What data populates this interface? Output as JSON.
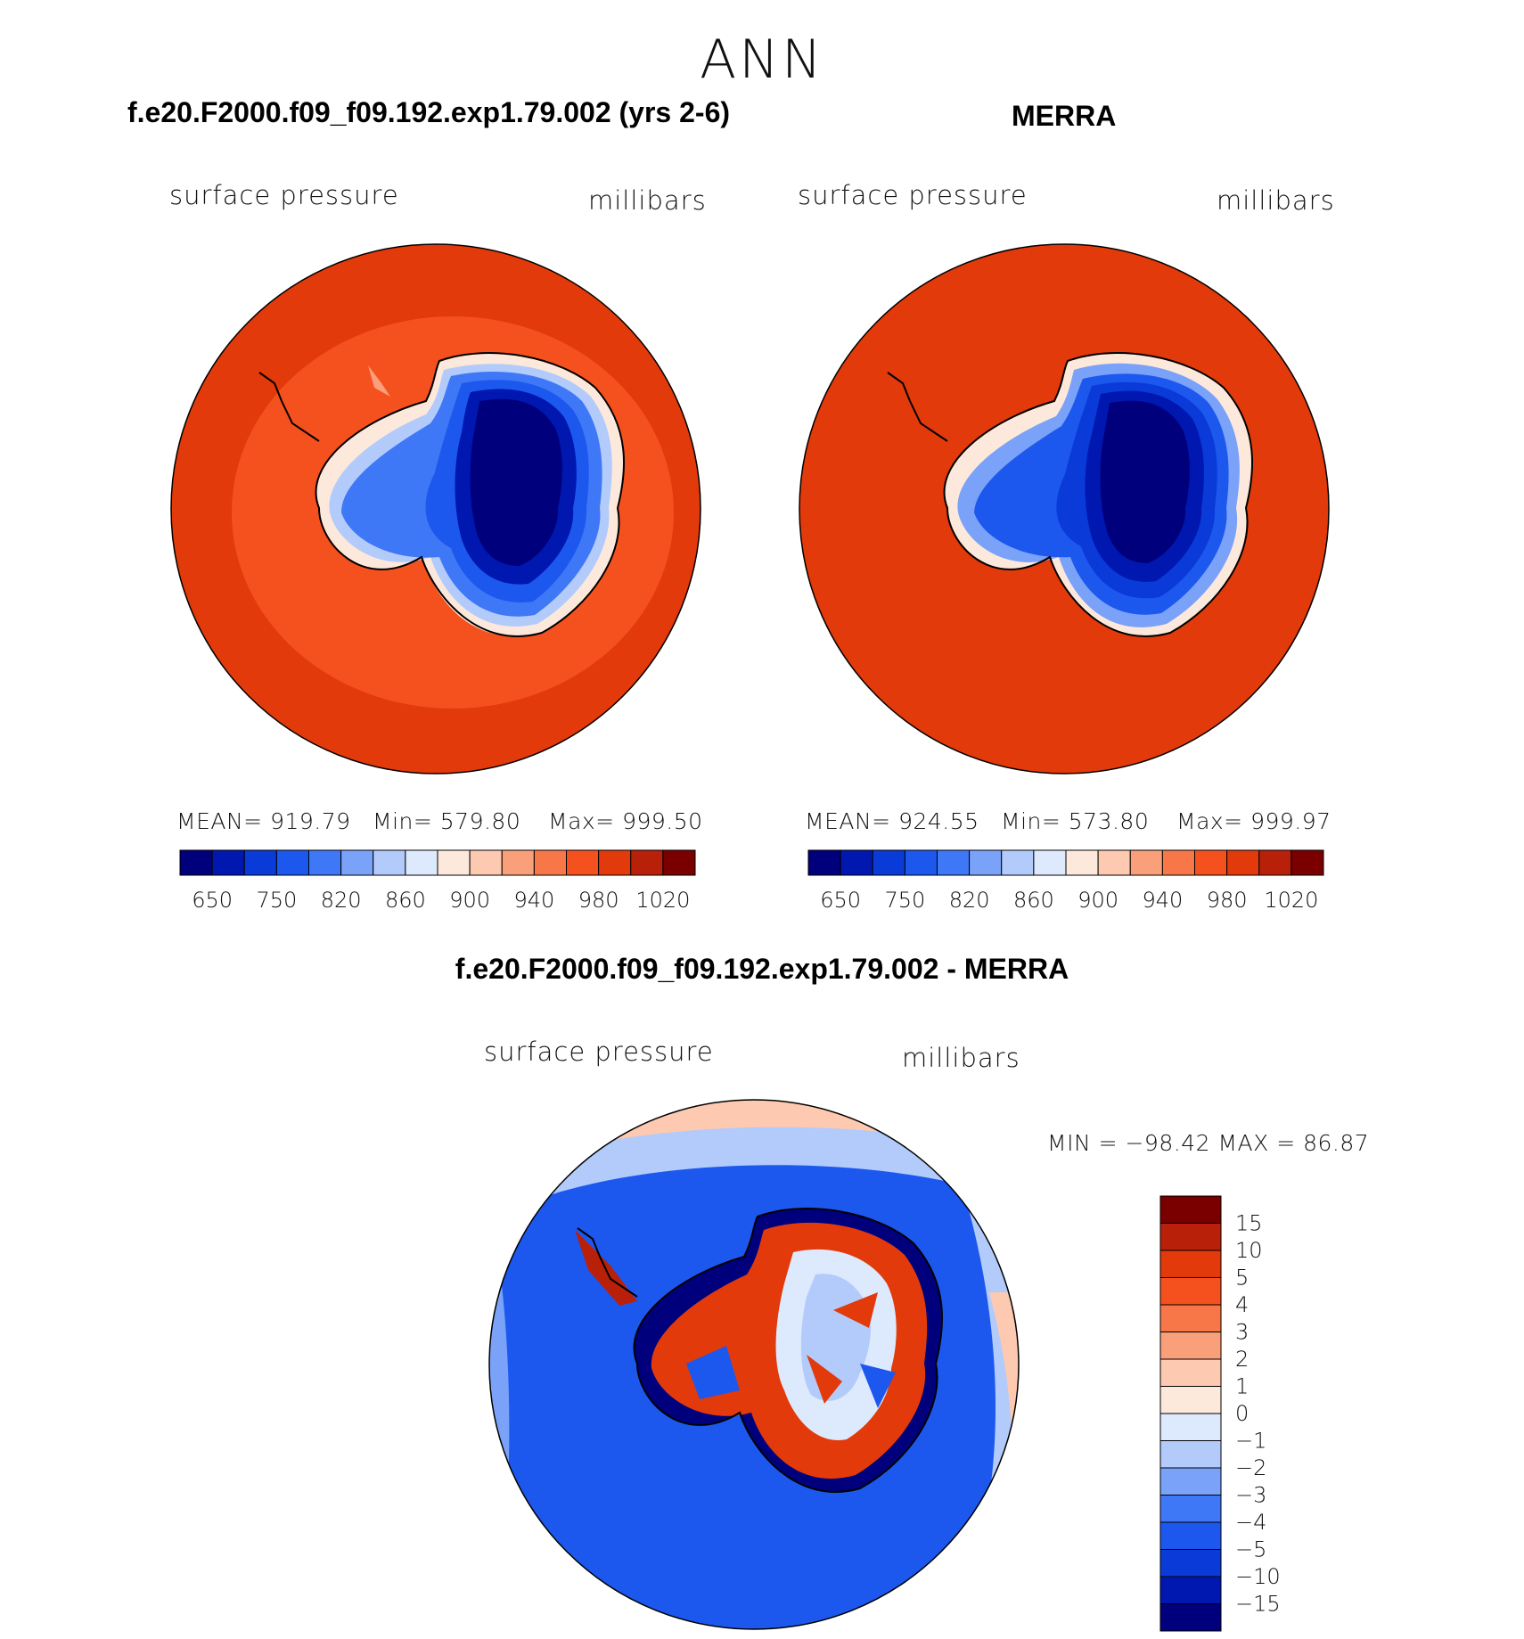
{
  "figure": {
    "title": "ANN"
  },
  "panels": [
    {
      "title": "f.e20.F2000.f09_f09.192.exp1.79.002 (yrs 2-6)",
      "variable": "surface pressure",
      "units": "millibars",
      "mean_label": "MEAN= 919.79",
      "min_label": "Min= 579.80",
      "max_label": "Max= 999.50",
      "colorbar_ticks": [
        "650",
        "750",
        "820",
        "860",
        "900",
        "940",
        "980",
        "1020"
      ]
    },
    {
      "title": "MERRA",
      "variable": "surface pressure",
      "units": "millibars",
      "mean_label": "MEAN= 924.55",
      "min_label": "Min= 573.80",
      "max_label": "Max= 999.97",
      "colorbar_ticks": [
        "650",
        "750",
        "820",
        "860",
        "900",
        "940",
        "980",
        "1020"
      ]
    },
    {
      "title": "f.e20.F2000.f09_f09.192.exp1.79.002 - MERRA",
      "variable": "surface pressure",
      "units": "millibars",
      "minmax_label": "MIN = −98.42 MAX =   86.87",
      "colorbar_ticks": [
        "15",
        "10",
        "5",
        "4",
        "3",
        "2",
        "1",
        "0",
        "−1",
        "−2",
        "−3",
        "−4",
        "−5",
        "−10",
        "−15"
      ]
    }
  ],
  "chart_data": [
    {
      "type": "heatmap",
      "projection": "south polar stereographic",
      "field": "surface pressure (millibars)",
      "levels": [
        650,
        700,
        750,
        800,
        820,
        840,
        860,
        880,
        900,
        920,
        940,
        960,
        980,
        1000,
        1020
      ],
      "colors": [
        "#00007d",
        "#0018b0",
        "#0a3ad8",
        "#1c58ee",
        "#3f78f6",
        "#7aa2f8",
        "#b2cbfb",
        "#dde9fd",
        "#fde9dc",
        "#fdc9b0",
        "#f9a07a",
        "#f77748",
        "#f5511e",
        "#e23a0a",
        "#b8200a",
        "#7a0000"
      ],
      "mean": 919.79,
      "min": 579.8,
      "max": 999.5
    },
    {
      "type": "heatmap",
      "projection": "south polar stereographic",
      "field": "surface pressure (millibars)",
      "levels": [
        650,
        700,
        750,
        800,
        820,
        840,
        860,
        880,
        900,
        920,
        940,
        960,
        980,
        1000,
        1020
      ],
      "colors": [
        "#00007d",
        "#0018b0",
        "#0a3ad8",
        "#1c58ee",
        "#3f78f6",
        "#7aa2f8",
        "#b2cbfb",
        "#dde9fd",
        "#fde9dc",
        "#fdc9b0",
        "#f9a07a",
        "#f77748",
        "#f5511e",
        "#e23a0a",
        "#b8200a",
        "#7a0000"
      ],
      "mean": 924.55,
      "min": 573.8,
      "max": 999.97
    },
    {
      "type": "heatmap",
      "projection": "south polar stereographic",
      "field": "surface pressure difference (millibars)",
      "levels": [
        -15,
        -10,
        -5,
        -4,
        -3,
        -2,
        -1,
        0,
        1,
        2,
        3,
        4,
        5,
        10,
        15
      ],
      "colors": [
        "#00007d",
        "#0018b0",
        "#0a3ad8",
        "#1c58ee",
        "#3f78f6",
        "#7aa2f8",
        "#b2cbfb",
        "#dde9fd",
        "#fde9dc",
        "#fdc9b0",
        "#f9a07a",
        "#f77748",
        "#f5511e",
        "#e23a0a",
        "#b8200a",
        "#7a0000"
      ],
      "min": -98.42,
      "max": 86.87
    }
  ]
}
